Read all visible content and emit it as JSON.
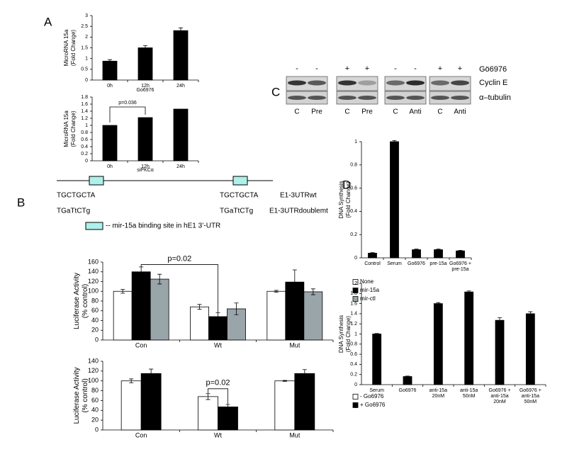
{
  "panel_labels": [
    "A",
    "B",
    "C",
    "D"
  ],
  "diagram": {
    "wt_seq": "TGCTGCTA",
    "mt_seq": "TGaTtCTg",
    "wt_name": "E1-3UTRwt",
    "mt_name": "E1-3UTRdoublemt",
    "legend": "-- mir-15a binding site in hE1 3’-UTR"
  },
  "blot": {
    "treatment_label": "Gö6976",
    "treatments": [
      "-",
      "-",
      "+",
      "+",
      "-",
      "-",
      "+",
      "+"
    ],
    "lanes": [
      "C",
      "Pre",
      "C",
      "Pre",
      "C",
      "Anti",
      "C",
      "Anti"
    ],
    "rows": [
      "Cyclin E",
      "α–tubulin"
    ]
  },
  "chart_data": [
    {
      "type": "bar",
      "y_label": [
        "MicroRNA 15a",
        "(Fold Change)"
      ],
      "x_label": "Go6976",
      "categories": [
        "0h",
        "12h",
        "24h"
      ],
      "series": [
        {
          "color": "#000000",
          "values": [
            0.88,
            1.5,
            2.3
          ],
          "errors": [
            0.07,
            0.1,
            0.13
          ]
        }
      ],
      "ylim": [
        0,
        3
      ],
      "yticks": [
        0,
        0.5,
        1,
        1.5,
        2,
        2.5,
        3
      ]
    },
    {
      "type": "bar",
      "y_label": [
        "MicroRNA 15a",
        "(Fold Change)"
      ],
      "x_label": "siPKCα",
      "annotation": "p=0.036",
      "categories": [
        "0h",
        "12h",
        "24h"
      ],
      "series": [
        {
          "color": "#000000",
          "values": [
            1,
            1.22,
            1.46
          ]
        }
      ],
      "ylim": [
        0,
        1.8
      ],
      "yticks": [
        0,
        0.2,
        0.4,
        0.6,
        0.8,
        1,
        1.2,
        1.4,
        1.6,
        1.8
      ]
    },
    {
      "type": "bar",
      "y_label": [
        "Luciferase Activity",
        "(% control)"
      ],
      "annotation": "p=0.02",
      "categories": [
        "Con",
        "Wt",
        "Mut"
      ],
      "series": [
        {
          "name": "None",
          "color": "#ffffff",
          "values": [
            100,
            68,
            100
          ],
          "errors": [
            4,
            5,
            2
          ]
        },
        {
          "name": "mir-15a",
          "color": "#000000",
          "values": [
            140,
            48,
            119
          ],
          "errors": [
            10,
            8,
            25
          ]
        },
        {
          "name": "mir-ctl",
          "color": "#9aa5aa",
          "values": [
            125,
            64,
            99
          ],
          "errors": [
            10,
            12,
            6
          ]
        }
      ],
      "ylim": [
        0,
        160
      ],
      "yticks": [
        0,
        20,
        40,
        60,
        80,
        100,
        120,
        140,
        160
      ]
    },
    {
      "type": "bar",
      "y_label": [
        "Luciferase Activity",
        "(% control)"
      ],
      "annotation": "p=0.02",
      "categories": [
        "Con",
        "Wt",
        "Mut"
      ],
      "series": [
        {
          "name": "- Go6976",
          "color": "#ffffff",
          "values": [
            100,
            68,
            100
          ],
          "errors": [
            4,
            6,
            1
          ]
        },
        {
          "name": "+ Go6976",
          "color": "#000000",
          "values": [
            115,
            47,
            115
          ],
          "errors": [
            9,
            5,
            8
          ]
        }
      ],
      "ylim": [
        0,
        140
      ],
      "yticks": [
        0,
        20,
        40,
        60,
        80,
        100,
        120,
        140
      ]
    },
    {
      "type": "bar",
      "y_label": [
        "DNA Synthesis",
        "(Fold Change)"
      ],
      "categories": [
        "Control",
        "Serum",
        "Go6976",
        "pre-15a",
        [
          "Go6976 +",
          "pre-15a"
        ]
      ],
      "series": [
        {
          "color": "#000000",
          "values": [
            0.04,
            1,
            0.07,
            0.07,
            0.06
          ],
          "errors": [
            0.005,
            0.01,
            0.005,
            0.005,
            0.005
          ]
        }
      ],
      "ylim": [
        0,
        1
      ],
      "yticks": [
        0,
        0.2,
        0.4,
        0.6,
        0.8,
        1
      ]
    },
    {
      "type": "bar",
      "y_label": [
        "DNA Synthesis",
        "(Fold Change)"
      ],
      "categories": [
        "Serum",
        "Go6976",
        [
          "anti-15a",
          "20nM"
        ],
        [
          "anti-15a",
          "50nM"
        ],
        [
          "Go6976 +",
          "anti-15a",
          "20nM"
        ],
        [
          "Go6976 +",
          "anti-15a",
          "50nM"
        ]
      ],
      "series": [
        {
          "color": "#000000",
          "values": [
            1,
            0.16,
            1.6,
            1.83,
            1.27,
            1.4
          ],
          "errors": [
            0.01,
            0.01,
            0.02,
            0.02,
            0.05,
            0.04
          ]
        }
      ],
      "ylim": [
        0,
        2
      ],
      "yticks": [
        0,
        0.2,
        0.4,
        0.6,
        0.8,
        1,
        1.2,
        1.4,
        1.6,
        1.8,
        2
      ]
    }
  ]
}
